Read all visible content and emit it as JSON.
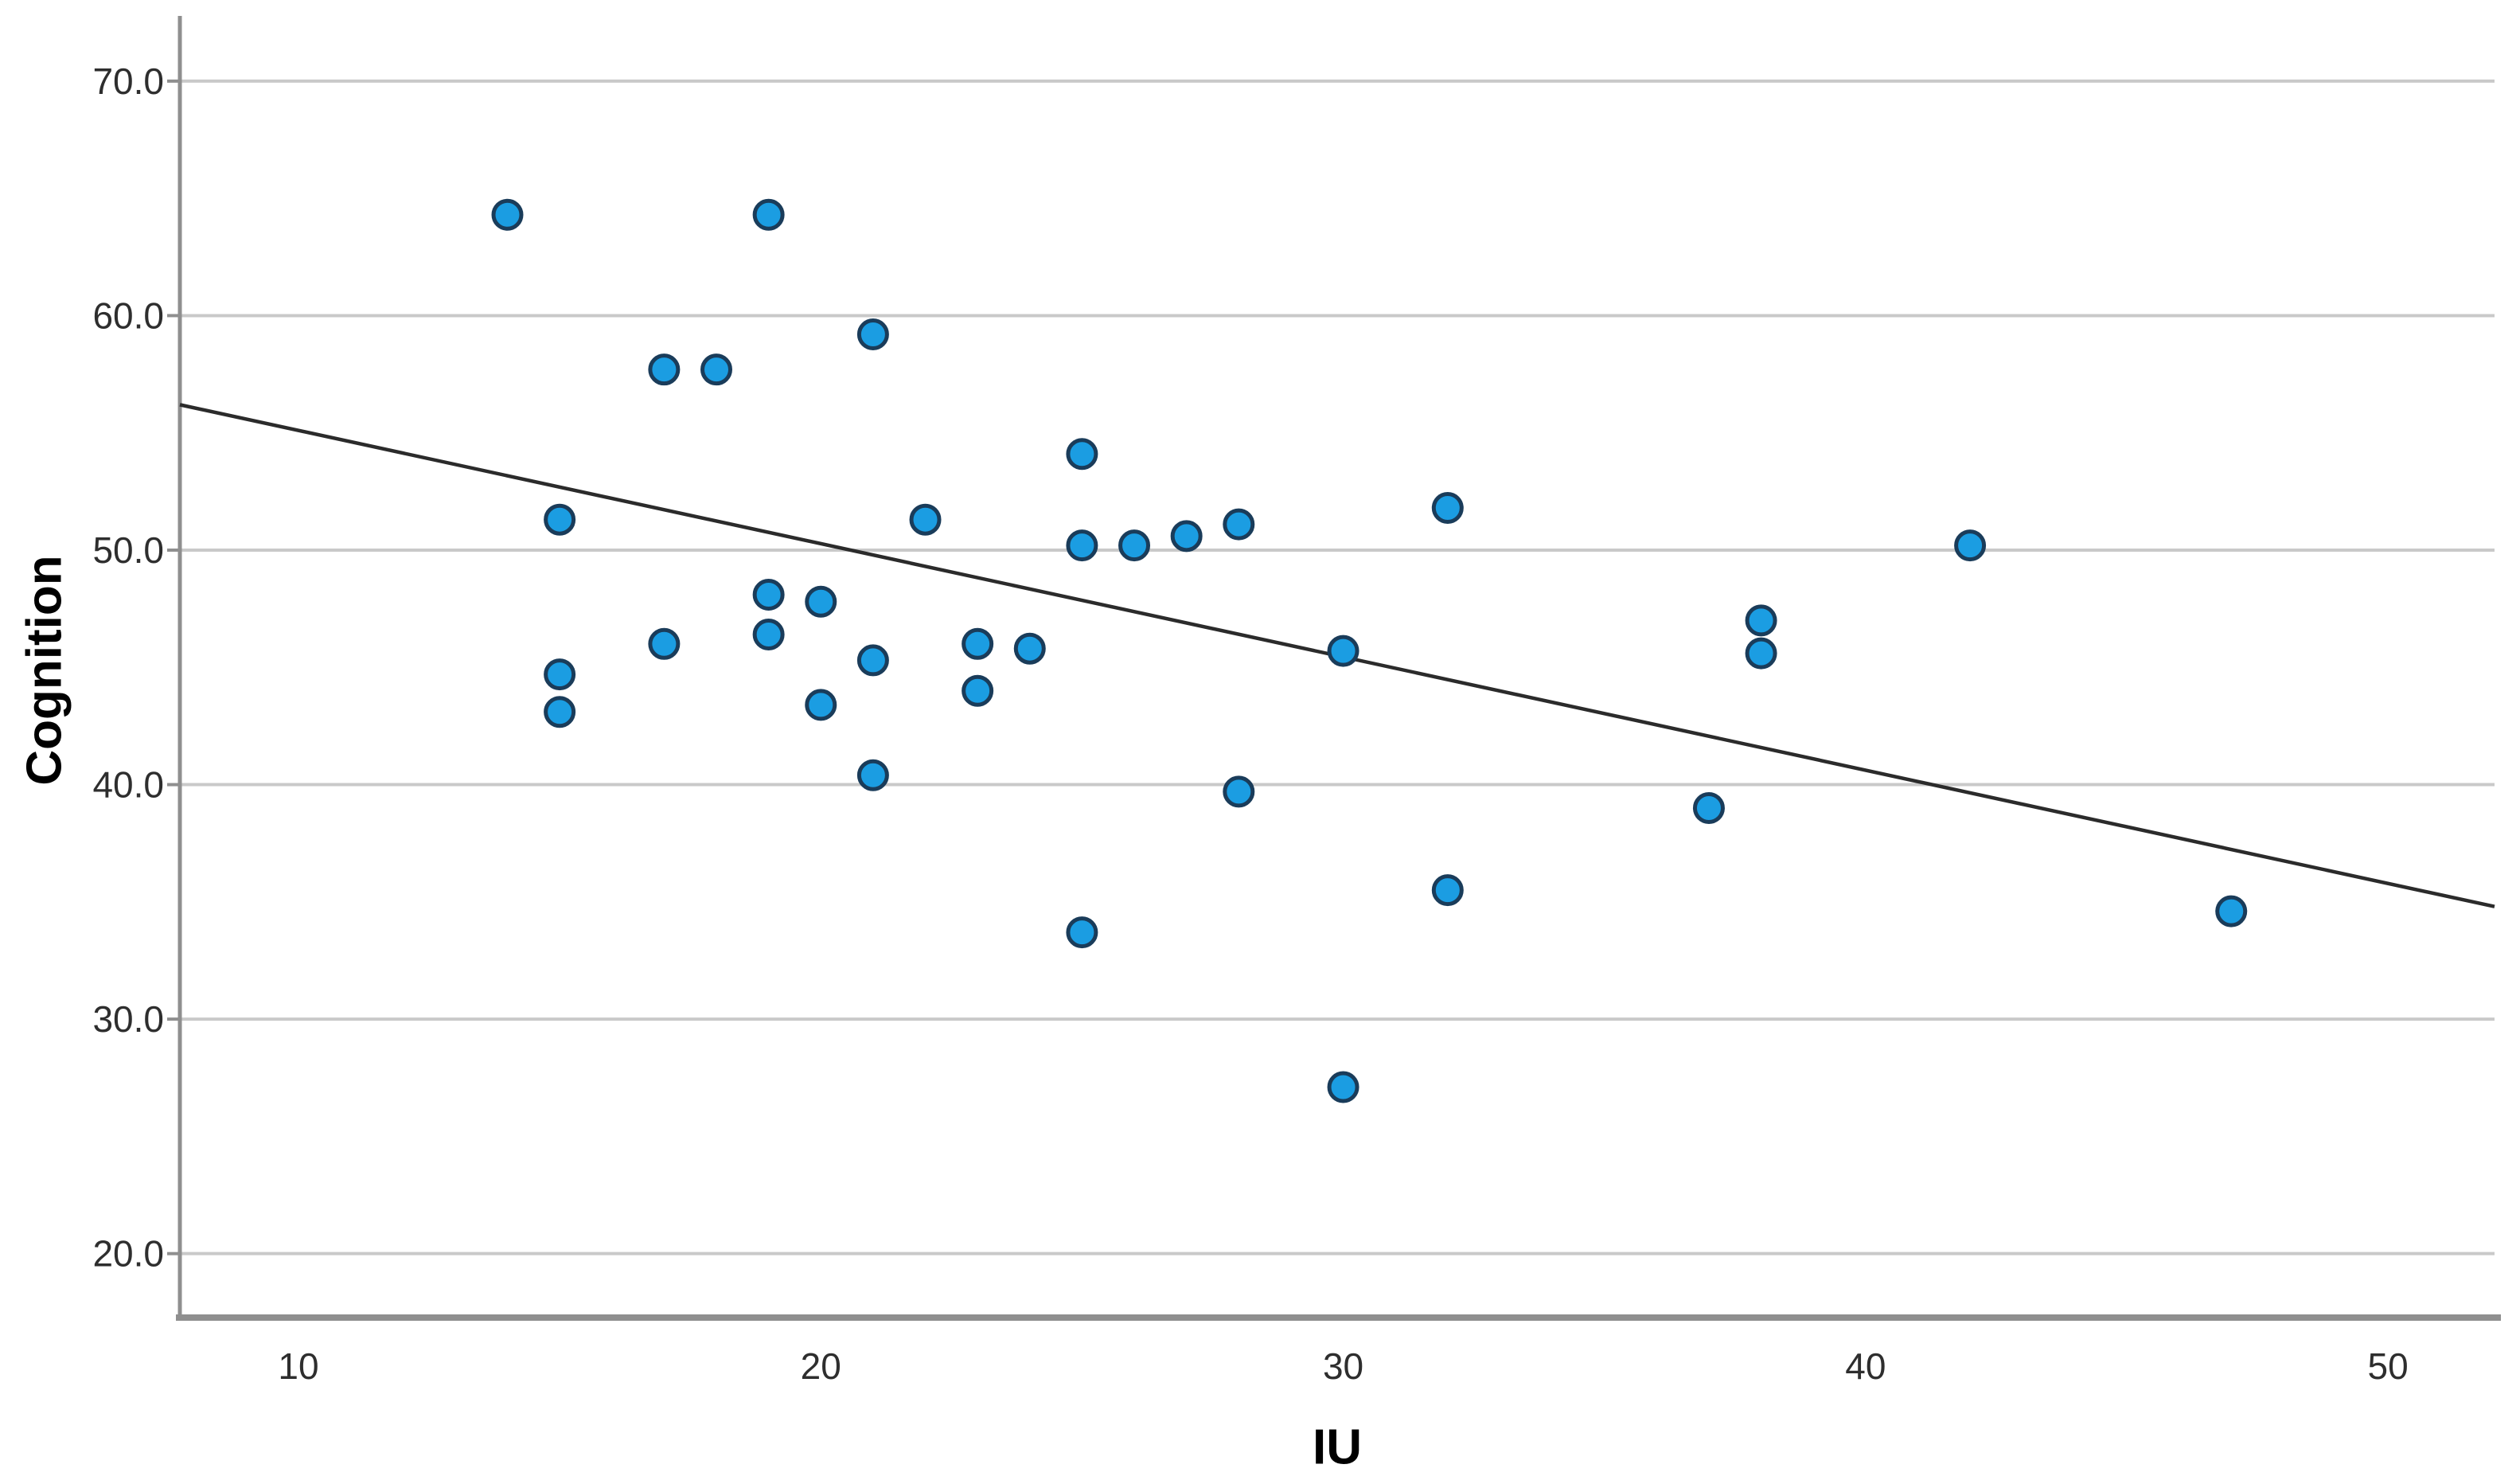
{
  "figure": {
    "background": "#ffffff"
  },
  "chart_data": {
    "type": "scatter",
    "title": "",
    "xlabel": "IU",
    "ylabel": "Cognition",
    "xlim": [
      7.73,
      52.04
    ],
    "ylim": [
      17.34,
      72.78
    ],
    "grid": "horizontal",
    "legend": "none",
    "x_ticks": [
      {
        "value": 10,
        "label": "10"
      },
      {
        "value": 20,
        "label": "20"
      },
      {
        "value": 30,
        "label": "30"
      },
      {
        "value": 40,
        "label": "40"
      },
      {
        "value": 50,
        "label": "50"
      }
    ],
    "y_ticks": [
      {
        "value": 20,
        "label": "20.0"
      },
      {
        "value": 30,
        "label": "30.0"
      },
      {
        "value": 40,
        "label": "40.0"
      },
      {
        "value": 50,
        "label": "50.0"
      },
      {
        "value": 60,
        "label": "60.0"
      },
      {
        "value": 70,
        "label": "70.0"
      }
    ],
    "points": [
      {
        "x": 14,
        "y": 64.3
      },
      {
        "x": 19,
        "y": 64.3
      },
      {
        "x": 21,
        "y": 59.2
      },
      {
        "x": 17,
        "y": 57.7
      },
      {
        "x": 18,
        "y": 57.7
      },
      {
        "x": 25,
        "y": 54.1
      },
      {
        "x": 32,
        "y": 51.8
      },
      {
        "x": 15,
        "y": 51.3
      },
      {
        "x": 22,
        "y": 51.3
      },
      {
        "x": 28,
        "y": 51.1
      },
      {
        "x": 27,
        "y": 50.6
      },
      {
        "x": 25,
        "y": 50.2
      },
      {
        "x": 26,
        "y": 50.2
      },
      {
        "x": 42,
        "y": 50.2
      },
      {
        "x": 19,
        "y": 48.1
      },
      {
        "x": 20,
        "y": 47.8
      },
      {
        "x": 38,
        "y": 47.0
      },
      {
        "x": 19,
        "y": 46.4
      },
      {
        "x": 17,
        "y": 46.0
      },
      {
        "x": 23,
        "y": 46.0
      },
      {
        "x": 24,
        "y": 45.8
      },
      {
        "x": 30,
        "y": 45.7
      },
      {
        "x": 38,
        "y": 45.6
      },
      {
        "x": 21,
        "y": 45.3
      },
      {
        "x": 15,
        "y": 44.7
      },
      {
        "x": 23,
        "y": 44.0
      },
      {
        "x": 20,
        "y": 43.4
      },
      {
        "x": 15,
        "y": 43.1
      },
      {
        "x": 21,
        "y": 40.4
      },
      {
        "x": 28,
        "y": 39.7
      },
      {
        "x": 37,
        "y": 39.0
      },
      {
        "x": 32,
        "y": 35.5
      },
      {
        "x": 25,
        "y": 33.7
      },
      {
        "x": 47,
        "y": 34.6
      },
      {
        "x": 30,
        "y": 27.1
      }
    ],
    "fit_line": {
      "x1": 7.73,
      "y1": 56.2,
      "x2": 52.04,
      "y2": 34.8
    },
    "colors": {
      "marker_fill": "#1b9de2",
      "marker_stroke": "#1a3c5a",
      "fit_line": "#2b2b2b",
      "grid": "#c9c9c9",
      "axis": "#8f8f8f",
      "tick_text": "#2e2e2e",
      "title_text": "#000000"
    }
  }
}
